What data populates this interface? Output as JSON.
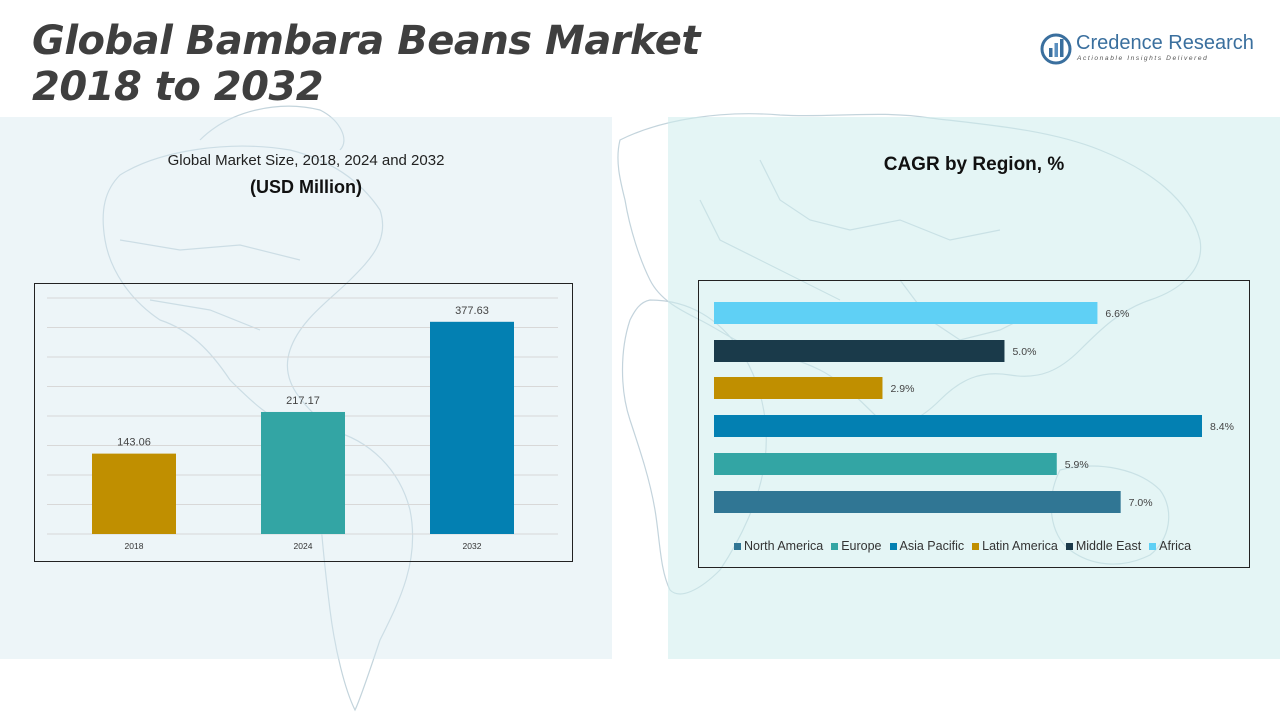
{
  "header": {
    "title_line1": "Global Bambara Beans Market",
    "title_line2": "2018 to 2032"
  },
  "logo": {
    "name": "Credence Research",
    "tagline": "Actionable Insights Delivered"
  },
  "left_panel": {
    "subtitle": "Global Market Size, 2018, 2024 and 2032",
    "unit": "(USD Million)"
  },
  "right_panel": {
    "title": "CAGR by Region, %"
  },
  "colors": {
    "gold": "#C08F00",
    "teal": "#33A5A4",
    "blue": "#0380B2",
    "steel": "#307694",
    "navy": "#1A3A4A",
    "sky": "#5FD0F5"
  },
  "chart_data": [
    {
      "type": "bar",
      "categories": [
        "2018",
        "2024",
        "2032"
      ],
      "values": [
        143.06,
        217.17,
        377.63
      ],
      "value_labels": [
        "143.06",
        "217.17",
        "377.63"
      ],
      "colors": [
        "#C08F00",
        "#33A5A4",
        "#0380B2"
      ],
      "ylim": [
        0,
        420
      ],
      "grid": true
    },
    {
      "type": "bar",
      "orientation": "horizontal",
      "categories": [
        "North America",
        "Europe",
        "Asia Pacific",
        "Latin America",
        "Middle East",
        "Africa"
      ],
      "values": [
        7.0,
        5.9,
        8.4,
        2.9,
        5.0,
        6.6
      ],
      "value_labels": [
        "7.0%",
        "5.9%",
        "8.4%",
        "2.9%",
        "5.0%",
        "6.6%"
      ],
      "colors": [
        "#307694",
        "#33A5A4",
        "#0380B2",
        "#C08F00",
        "#1A3A4A",
        "#5FD0F5"
      ],
      "xlim": [
        0,
        8.4
      ],
      "legend_position": "bottom",
      "grid": false
    }
  ]
}
